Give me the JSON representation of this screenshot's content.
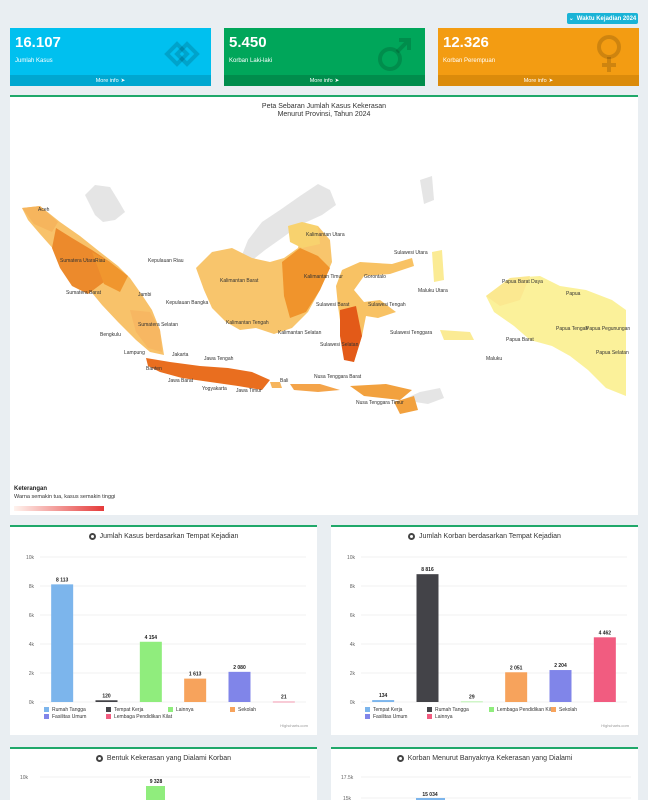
{
  "header": {
    "filter_button": "Waktu Kejadian 2024"
  },
  "stats": [
    {
      "value": "16.107",
      "label": "Jumlah Kasus",
      "more": "More info",
      "color": "#00c0ef",
      "footer_color": "#00a7d0",
      "icon": "cube-icon"
    },
    {
      "value": "5.450",
      "label": "Korban Laki-laki",
      "more": "More info",
      "color": "#00a65a",
      "footer_color": "#008d4c",
      "icon": "male-icon"
    },
    {
      "value": "12.326",
      "label": "Korban Perempuan",
      "more": "More info",
      "color": "#f39c12",
      "footer_color": "#db8b0b",
      "icon": "female-icon"
    }
  ],
  "map": {
    "title_line1": "Peta Sebaran Jumlah Kasus Kekerasan",
    "title_line2": "Menurut Provinsi, Tahun 2024",
    "legend_title": "Keterangan",
    "legend_subtitle": "Warna semakin tua, kasus semakin tinggi",
    "labels": [
      "Aceh",
      "Sumatera Utara",
      "Riau",
      "Kepulauan Riau",
      "Sumatera Barat",
      "Jambi",
      "Kepulauan Bangka",
      "Bengkulu",
      "Sumatera Selatan",
      "Lampung",
      "Banten",
      "Jakarta",
      "Jawa Barat",
      "Jawa Tengah",
      "Yogyakarta",
      "Jawa Timur",
      "Bali",
      "Nusa Tenggara Barat",
      "Nusa Tenggara Timur",
      "Kalimantan Barat",
      "Kalimantan Tengah",
      "Kalimantan Selatan",
      "Kalimantan Timur",
      "Kalimantan Utara",
      "Sulawesi Utara",
      "Gorontalo",
      "Sulawesi Barat",
      "Sulawesi Tengah",
      "Sulawesi Selatan",
      "Sulawesi Tenggara",
      "Maluku Utara",
      "Maluku",
      "Papua Barat Daya",
      "Papua Barat",
      "Papua",
      "Papua Tengah",
      "Papua Pegunungan",
      "Papua Selatan"
    ]
  },
  "charts": [
    {
      "title": "Jumlah Kasus berdasarkan Tempat Kejadian",
      "credit": "Highcharts.com",
      "chart_data": {
        "type": "bar",
        "ylim": [
          0,
          10000
        ],
        "yticks": [
          "0k",
          "2k",
          "4k",
          "6k",
          "8k",
          "10k"
        ],
        "series": [
          {
            "name": "Rumah Tangga",
            "value": 8113,
            "label": "8 113",
            "color": "#7cb5ec"
          },
          {
            "name": "Tempat Kerja",
            "value": 120,
            "label": "120",
            "color": "#434348"
          },
          {
            "name": "Lainnya",
            "value": 4154,
            "label": "4 154",
            "color": "#90ed7d"
          },
          {
            "name": "Sekolah",
            "value": 1613,
            "label": "1 613",
            "color": "#f7a35c"
          },
          {
            "name": "Fasilitas Umum",
            "value": 2080,
            "label": "2 080",
            "color": "#8085e9"
          },
          {
            "name": "Lembaga Pendidikan Kilat",
            "value": 21,
            "label": "21",
            "color": "#f15c80"
          }
        ]
      }
    },
    {
      "title": "Jumlah Korban berdasarkan Tempat Kejadian",
      "credit": "Highcharts.com",
      "chart_data": {
        "type": "bar",
        "ylim": [
          0,
          10000
        ],
        "yticks": [
          "0k",
          "2k",
          "4k",
          "6k",
          "8k",
          "10k"
        ],
        "series": [
          {
            "name": "Tempat Kerja",
            "value": 134,
            "label": "134",
            "color": "#7cb5ec"
          },
          {
            "name": "Rumah Tangga",
            "value": 8816,
            "label": "8 816",
            "color": "#434348"
          },
          {
            "name": "Lembaga Pendidikan Kilat",
            "value": 29,
            "label": "29",
            "color": "#90ed7d"
          },
          {
            "name": "Sekolah",
            "value": 2051,
            "label": "2 051",
            "color": "#f7a35c"
          },
          {
            "name": "Fasilitas Umum",
            "value": 2204,
            "label": "2 204",
            "color": "#8085e9"
          },
          {
            "name": "Lainnya",
            "value": 4462,
            "label": "4 462",
            "color": "#f15c80"
          }
        ]
      }
    }
  ],
  "bottom": [
    {
      "title": "Bentuk Kekerasan yang Dialami Korban",
      "ytick": "10k",
      "bar_label": "9 328",
      "bar_value": 9328,
      "bar_color": "#90ed7d"
    },
    {
      "title": "Korban Menurut Banyaknya Kekerasan yang Dialami",
      "yticks": [
        "17.5k",
        "15k"
      ],
      "bar_label": "15 034",
      "bar_value": 15034,
      "bar_color": "#7cb5ec"
    }
  ]
}
